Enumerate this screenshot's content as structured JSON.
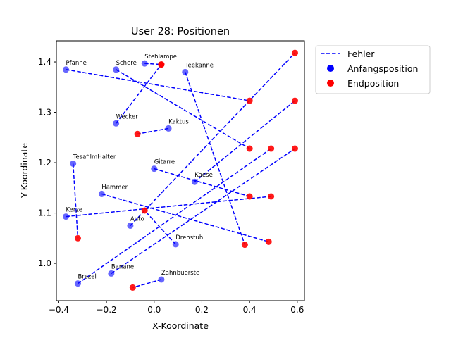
{
  "chart_data": {
    "type": "scatter",
    "title": "User 28: Positionen",
    "xlabel": "X-Koordinate",
    "ylabel": "Y-Koordinate",
    "xlim": [
      -0.41,
      0.63
    ],
    "ylim": [
      0.926,
      1.442
    ],
    "xticks": [
      "−0.4",
      "−0.2",
      "0.0",
      "0.2",
      "0.4",
      "0.6"
    ],
    "xtick_values": [
      -0.4,
      -0.2,
      0.0,
      0.2,
      0.4,
      0.6
    ],
    "yticks": [
      "1.0",
      "1.1",
      "1.2",
      "1.3",
      "1.4"
    ],
    "ytick_values": [
      1.0,
      1.1,
      1.2,
      1.3,
      1.4
    ],
    "grid": false,
    "legend": {
      "placement": "outside-top-right",
      "entries": [
        {
          "label": "Fehler",
          "kind": "dashed-line",
          "color": "#0000ff"
        },
        {
          "label": "Anfangsposition",
          "kind": "marker",
          "color": "#0000ff"
        },
        {
          "label": "Endposition",
          "kind": "marker",
          "color": "#ff0000"
        }
      ]
    },
    "colors": {
      "start": "#0000ff",
      "end": "#ff0000",
      "error_line": "#0000ff"
    },
    "objects": [
      {
        "name": "Pfanne",
        "start": [
          -0.37,
          1.385
        ],
        "end": [
          0.4,
          1.323
        ]
      },
      {
        "name": "Schere",
        "start": [
          -0.16,
          1.385
        ],
        "end": [
          0.4,
          1.228
        ]
      },
      {
        "name": "Stehlampe",
        "start": [
          -0.04,
          1.397
        ],
        "end": [
          0.03,
          1.395
        ]
      },
      {
        "name": "Teekanne",
        "start": [
          0.13,
          1.38
        ],
        "end": [
          0.38,
          1.037
        ]
      },
      {
        "name": "Wecker",
        "start": [
          -0.16,
          1.278
        ],
        "end": [
          0.03,
          1.395
        ]
      },
      {
        "name": "Kaktus",
        "start": [
          0.06,
          1.268
        ],
        "end": [
          -0.07,
          1.257
        ]
      },
      {
        "name": "TesafilmHalter",
        "start": [
          -0.34,
          1.198
        ],
        "end": [
          -0.32,
          1.05
        ]
      },
      {
        "name": "Gitarre",
        "start": [
          0.0,
          1.188
        ],
        "end": [
          0.4,
          1.133
        ]
      },
      {
        "name": "Kaese",
        "start": [
          0.17,
          1.162
        ],
        "end": [
          0.59,
          1.323
        ]
      },
      {
        "name": "Hammer",
        "start": [
          -0.22,
          1.138
        ],
        "end": [
          0.48,
          1.043
        ]
      },
      {
        "name": "Kerze",
        "start": [
          -0.37,
          1.093
        ],
        "end": [
          0.49,
          1.133
        ]
      },
      {
        "name": "Auto",
        "start": [
          -0.1,
          1.075
        ],
        "end": [
          0.59,
          1.418
        ]
      },
      {
        "name": "Drehstuhl",
        "start": [
          0.09,
          1.038
        ],
        "end": [
          -0.04,
          1.105
        ]
      },
      {
        "name": "Brezel",
        "start": [
          -0.32,
          0.96
        ],
        "end": [
          0.49,
          1.228
        ]
      },
      {
        "name": "Banane",
        "start": [
          -0.18,
          0.98
        ],
        "end": [
          0.59,
          1.228
        ]
      },
      {
        "name": "Zahnbuerste",
        "start": [
          0.03,
          0.968
        ],
        "end": [
          -0.09,
          0.952
        ]
      }
    ]
  }
}
